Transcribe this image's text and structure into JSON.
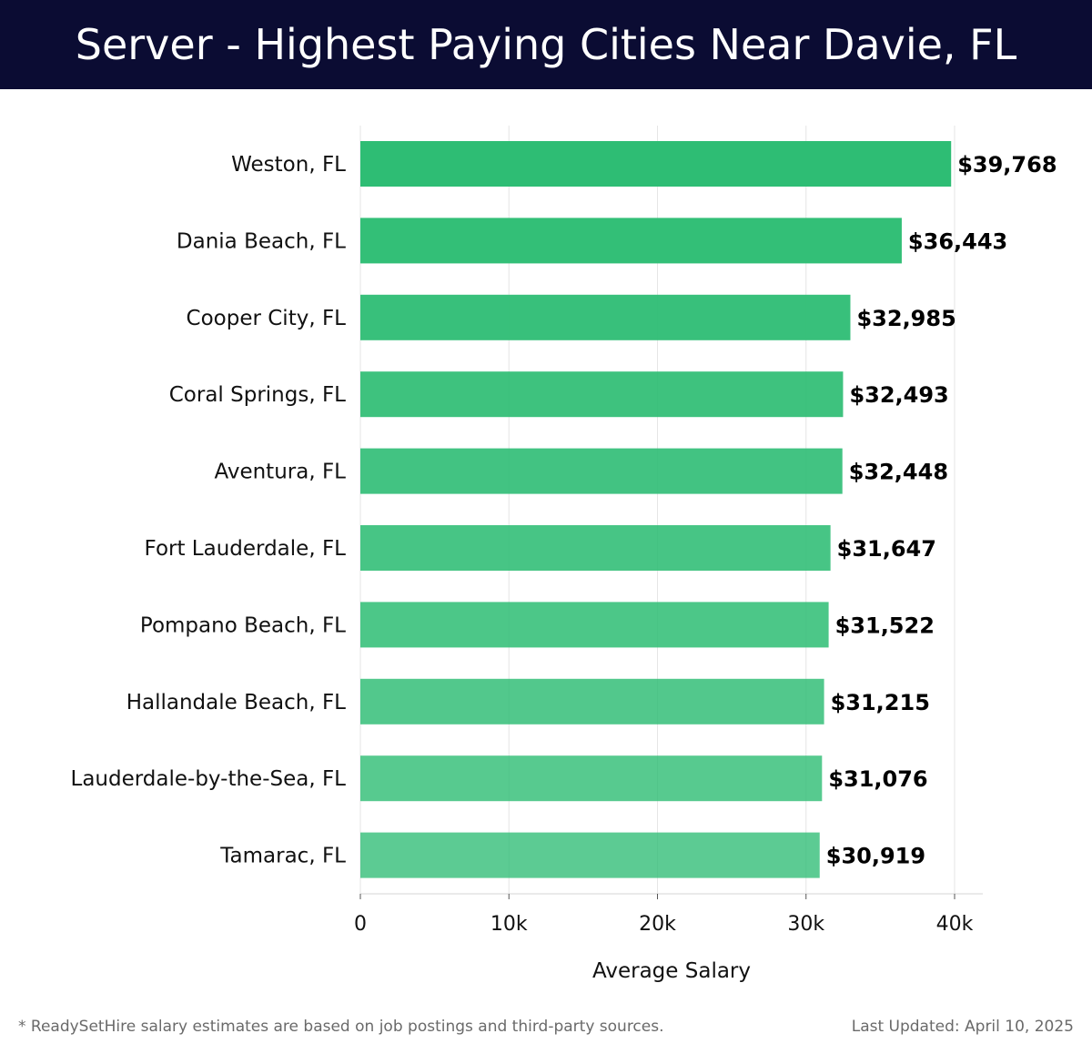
{
  "header": {
    "title": "Server - Highest Paying Cities Near Davie, FL"
  },
  "chart_data": {
    "type": "bar",
    "orientation": "horizontal",
    "title": "Server - Highest Paying Cities Near Davie, FL",
    "xlabel": "Average Salary",
    "ylabel": "",
    "xlim": [
      0,
      40000
    ],
    "xticks": [
      0,
      10000,
      20000,
      30000,
      40000
    ],
    "xtick_labels": [
      "0",
      "10k",
      "20k",
      "30k",
      "40k"
    ],
    "grid": true,
    "categories": [
      "Weston, FL",
      "Dania Beach, FL",
      "Cooper City, FL",
      "Coral Springs, FL",
      "Aventura, FL",
      "Fort Lauderdale, FL",
      "Pompano Beach, FL",
      "Hallandale Beach, FL",
      "Lauderdale-by-the-Sea, FL",
      "Tamarac, FL"
    ],
    "values": [
      39768,
      36443,
      32985,
      32493,
      32448,
      31647,
      31522,
      31215,
      31076,
      30919
    ],
    "value_labels": [
      "$39,768",
      "$36,443",
      "$32,985",
      "$32,493",
      "$32,448",
      "$31,647",
      "$31,522",
      "$31,215",
      "$31,076",
      "$30,919"
    ],
    "bar_color": "#2ebd74",
    "bar_opacity_range": [
      1.0,
      0.78
    ]
  },
  "footer": {
    "note": "* ReadySetHire salary estimates are based on job postings and third-party sources.",
    "updated": "Last Updated: April 10, 2025"
  },
  "colors": {
    "header_bg": "#0b0c33",
    "header_text": "#ffffff",
    "bar": "#2ebd74",
    "grid": "#e6e6e6",
    "axis_text": "#111111",
    "footer_text": "#6a6a6a"
  }
}
